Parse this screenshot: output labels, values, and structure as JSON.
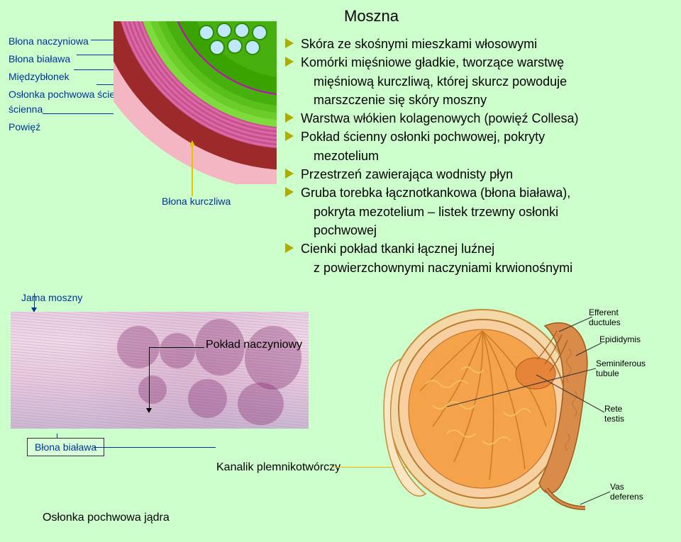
{
  "title": "Moszna",
  "left_labels": [
    "Błona naczyniowa",
    "Błona biaława",
    "Międzybłonek",
    "Osłonka pochwowa ścienna",
    "Powięź"
  ],
  "kurczliwa_label": "Błona kurczliwa",
  "bullets": [
    {
      "text": "Skóra ze skośnymi mieszkami włosowymi",
      "indent": false,
      "marker": true
    },
    {
      "text": "Komórki mięśniowe gładkie, tworzące warstwę",
      "indent": false,
      "marker": true
    },
    {
      "text": "mięśniową kurczliwą, której skurcz powoduje",
      "indent": true,
      "marker": false
    },
    {
      "text": "marszczenie się skóry moszny",
      "indent": true,
      "marker": false
    },
    {
      "text": "Warstwa włókien kolagenowych (powięź Collesa)",
      "indent": false,
      "marker": true
    },
    {
      "text": "Pokład ścienny osłonki pochwowej, pokryty",
      "indent": false,
      "marker": true
    },
    {
      "text": "mezotelium",
      "indent": true,
      "marker": false
    },
    {
      "text": "Przestrzeń zawierająca wodnisty płyn",
      "indent": false,
      "marker": true
    },
    {
      "text": "Gruba torebka łącznotkankowa (błona biaława),",
      "indent": false,
      "marker": true
    },
    {
      "text": "pokryta mezotelium – listek trzewny osłonki",
      "indent": true,
      "marker": false
    },
    {
      "text": "pochwowej",
      "indent": true,
      "marker": false
    },
    {
      "text": "Cienki pokład tkanki łącznej luźnej",
      "indent": false,
      "marker": true
    },
    {
      "text": "z powierzchownymi naczyniami krwionośnymi",
      "indent": true,
      "marker": false
    }
  ],
  "jama": "Jama moszny",
  "poklad": "Pokład naczyniowy",
  "bialawa": "Błona biaława",
  "kanalik": "Kanalik plemnikotwórczy",
  "oslonka": "Osłonka pochwowa jądra",
  "testis_labels": {
    "efferent": "Efferent ductules",
    "epididymis": "Epididymis",
    "seminiferous": "Seminiferous tubule",
    "rete": "Rete testis",
    "vas": "Vas deferens"
  },
  "colors": {
    "bg": "#ccffcc",
    "label": "#003399",
    "bullet_tri": "#adad00",
    "testis_body": "#f5a34a",
    "testis_cap": "#f7cfa0",
    "epididymis": "#d98b4a",
    "tunica": "#f5d8a8",
    "kanalik_arrow": "#ffae00"
  }
}
